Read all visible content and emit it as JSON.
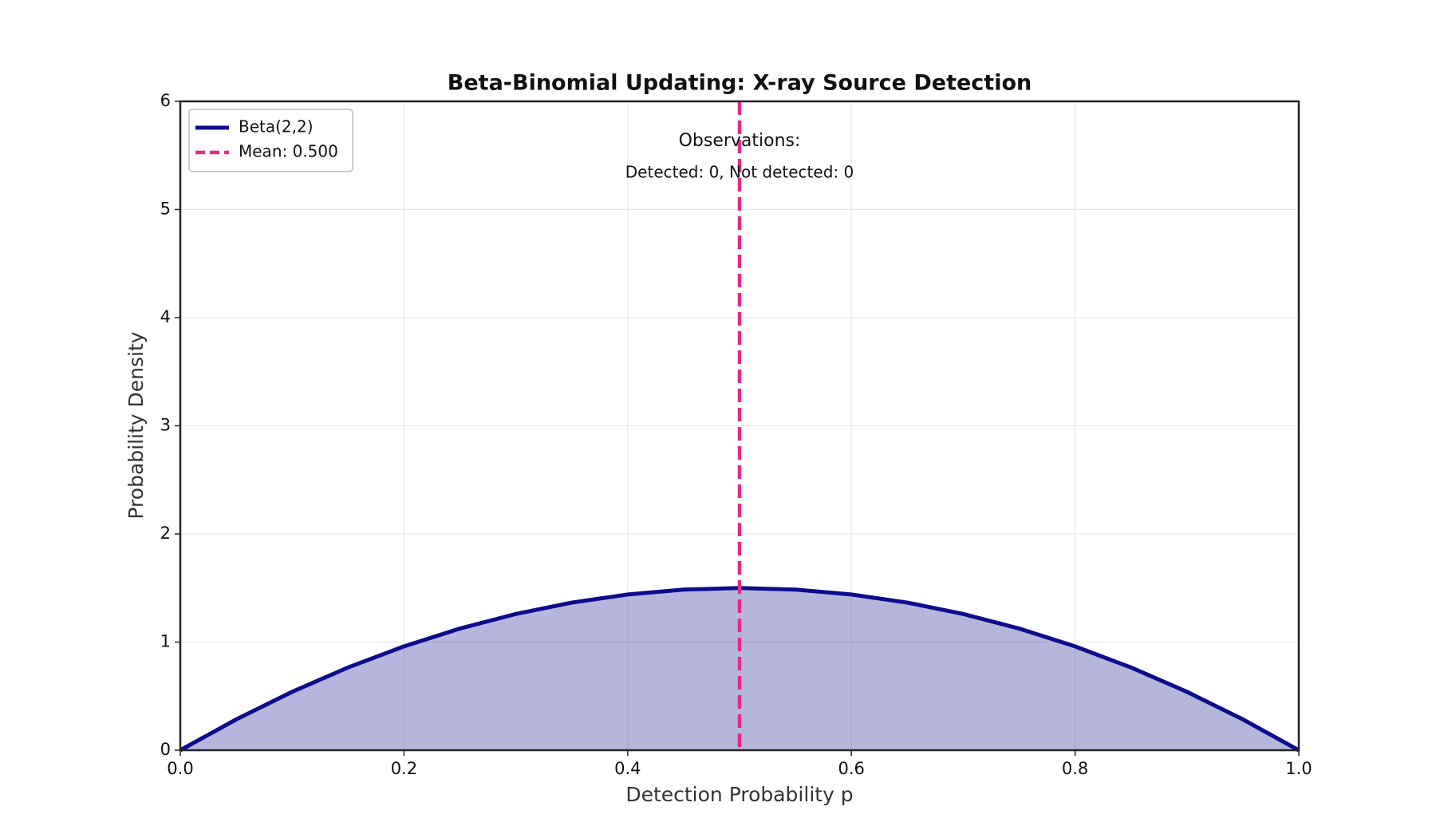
{
  "chart_data": {
    "type": "line",
    "title": "Beta-Binomial Updating: X-ray Source Detection",
    "xlabel": "Detection Probability p",
    "ylabel": "Probability Density",
    "x": [
      0,
      0.05,
      0.1,
      0.15,
      0.2,
      0.25,
      0.3,
      0.35,
      0.4,
      0.45,
      0.5,
      0.55,
      0.6,
      0.65,
      0.7,
      0.75,
      0.8,
      0.85,
      0.9,
      0.95,
      1
    ],
    "series": [
      {
        "name": "Beta(2,2)",
        "color": "#0c0c8c",
        "fill": true,
        "fill_alpha": 0.3,
        "values": [
          0,
          0.285,
          0.54,
          0.765,
          0.96,
          1.125,
          1.26,
          1.365,
          1.44,
          1.485,
          1.5,
          1.485,
          1.44,
          1.365,
          1.26,
          1.125,
          0.96,
          0.765,
          0.54,
          0.285,
          0
        ]
      }
    ],
    "vlines": [
      {
        "name": "Mean: 0.500",
        "x": 0.5,
        "color": "#e7298a",
        "dashed": true
      }
    ],
    "annotations": [
      "Observations:",
      "Detected: 0, Not detected: 0"
    ],
    "xlim": [
      0,
      1
    ],
    "xticks": [
      {
        "value": 0,
        "label": "0.0"
      },
      0.2,
      0.4,
      0.6,
      0.8,
      {
        "value": 1,
        "label": "1.0"
      }
    ],
    "ylim": [
      0,
      6
    ],
    "yticks": [
      0,
      1,
      2,
      3,
      4,
      5,
      6
    ],
    "grid": true,
    "legend": "upper-left"
  }
}
